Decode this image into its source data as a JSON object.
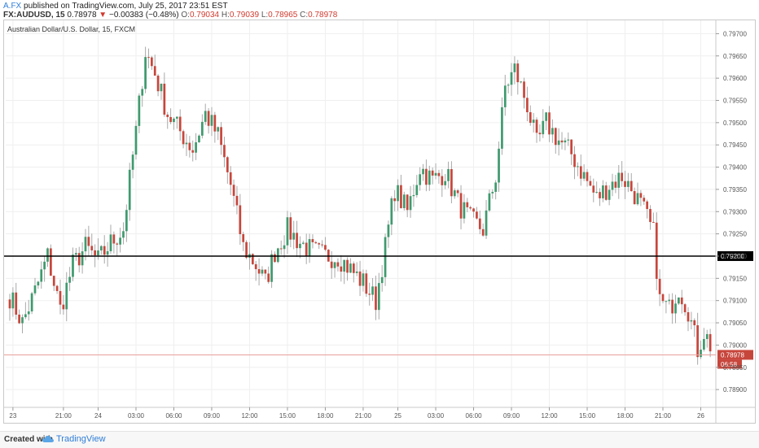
{
  "header": {
    "author": "A.FX",
    "published_text": "published on TradingView.com, July 25, 2017 23:51 EST",
    "symbol": "FX:AUDUSD, 15",
    "last": "0.78978",
    "down_arrow": "▼",
    "change": "−0.00383 (−0.48%)",
    "o_label": "O:",
    "o_value": "0.79034",
    "h_label": "H:",
    "h_value": "0.79039",
    "l_label": "L:",
    "l_value": "0.78965",
    "c_label": "C:",
    "c_value": "0.78978"
  },
  "chart_data": {
    "type": "candlestick",
    "title": "Australian Dollar/U.S. Dollar, 15, FXCM",
    "ylim": [
      0.7886,
      0.7973
    ],
    "y_ticks": [
      "0.78900",
      "0.78950",
      "0.79000",
      "0.79050",
      "0.79100",
      "0.79150",
      "0.79200",
      "0.79250",
      "0.79300",
      "0.79350",
      "0.79400",
      "0.79450",
      "0.79500",
      "0.79550",
      "0.79600",
      "0.79650",
      "0.79700"
    ],
    "y_tick_values": [
      0.789,
      0.7895,
      0.79,
      0.7905,
      0.791,
      0.7915,
      0.792,
      0.7925,
      0.793,
      0.7935,
      0.794,
      0.7945,
      0.795,
      0.7955,
      0.796,
      0.7965,
      0.797
    ],
    "x_ticks": [
      {
        "i": 1,
        "label": "23"
      },
      {
        "i": 17,
        "label": "21:00"
      },
      {
        "i": 28,
        "label": "24"
      },
      {
        "i": 40,
        "label": "03:00"
      },
      {
        "i": 52,
        "label": "06:00"
      },
      {
        "i": 64,
        "label": "09:00"
      },
      {
        "i": 76,
        "label": "12:00"
      },
      {
        "i": 88,
        "label": "15:00"
      },
      {
        "i": 100,
        "label": "18:00"
      },
      {
        "i": 112,
        "label": "21:00"
      },
      {
        "i": 123,
        "label": "25"
      },
      {
        "i": 135,
        "label": "03:00"
      },
      {
        "i": 147,
        "label": "06:00"
      },
      {
        "i": 159,
        "label": "09:00"
      },
      {
        "i": 171,
        "label": "12:00"
      },
      {
        "i": 183,
        "label": "15:00"
      },
      {
        "i": 195,
        "label": "18:00"
      },
      {
        "i": 207,
        "label": "21:00"
      },
      {
        "i": 219,
        "label": "26"
      }
    ],
    "horizontal_line": {
      "value": 0.792,
      "label": "0.79200",
      "color": "#000000"
    },
    "price_line": {
      "value": 0.78978,
      "label": "0.78978",
      "color": "#e8a09a"
    },
    "countdown_label": "06:58",
    "up_color": "#3f9a6e",
    "down_color": "#c7463c",
    "anchors": [
      [
        0,
        0.7911
      ],
      [
        4,
        0.7905
      ],
      [
        8,
        0.7912
      ],
      [
        12,
        0.792
      ],
      [
        16,
        0.7908
      ],
      [
        20,
        0.7918
      ],
      [
        24,
        0.7922
      ],
      [
        28,
        0.7919
      ],
      [
        32,
        0.7923
      ],
      [
        36,
        0.7926
      ],
      [
        40,
        0.7948
      ],
      [
        43,
        0.7966
      ],
      [
        46,
        0.7961
      ],
      [
        50,
        0.7952
      ],
      [
        54,
        0.7948
      ],
      [
        58,
        0.7944
      ],
      [
        62,
        0.7952
      ],
      [
        66,
        0.7947
      ],
      [
        70,
        0.7936
      ],
      [
        74,
        0.7922
      ],
      [
        78,
        0.7918
      ],
      [
        81,
        0.7914
      ],
      [
        84,
        0.7921
      ],
      [
        88,
        0.7926
      ],
      [
        92,
        0.7923
      ],
      [
        96,
        0.7921
      ],
      [
        100,
        0.792
      ],
      [
        104,
        0.792
      ],
      [
        108,
        0.7917
      ],
      [
        112,
        0.7914
      ],
      [
        116,
        0.791
      ],
      [
        119,
        0.7922
      ],
      [
        122,
        0.7935
      ],
      [
        126,
        0.793
      ],
      [
        130,
        0.794
      ],
      [
        134,
        0.7937
      ],
      [
        138,
        0.7939
      ],
      [
        142,
        0.7932
      ],
      [
        146,
        0.7928
      ],
      [
        150,
        0.7926
      ],
      [
        154,
        0.7938
      ],
      [
        157,
        0.7958
      ],
      [
        160,
        0.7962
      ],
      [
        164,
        0.7954
      ],
      [
        167,
        0.7945
      ],
      [
        170,
        0.795
      ],
      [
        174,
        0.7946
      ],
      [
        178,
        0.7943
      ],
      [
        182,
        0.7938
      ],
      [
        186,
        0.7933
      ],
      [
        190,
        0.7936
      ],
      [
        194,
        0.7938
      ],
      [
        198,
        0.7934
      ],
      [
        201,
        0.793
      ],
      [
        204,
        0.7925
      ],
      [
        206,
        0.791
      ],
      [
        209,
        0.7908
      ],
      [
        212,
        0.7913
      ],
      [
        215,
        0.7908
      ],
      [
        218,
        0.7899
      ],
      [
        220,
        0.7903
      ],
      [
        222,
        0.79
      ]
    ],
    "candle_count": 223
  },
  "footer": {
    "created_with": "Created with",
    "brand": "TradingView"
  }
}
